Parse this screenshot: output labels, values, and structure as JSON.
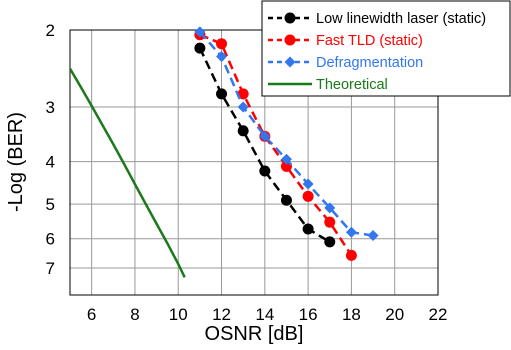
{
  "chart_data": {
    "type": "line",
    "xlabel": "OSNR [dB]",
    "ylabel": "-Log (BER)",
    "xlim": [
      5,
      22
    ],
    "x_ticks": [
      "6",
      "8",
      "10",
      "12",
      "14",
      "16",
      "18",
      "20",
      "22"
    ],
    "y_ticks": [
      "2",
      "3",
      "4",
      "5",
      "6",
      "7"
    ],
    "y_scale": "log10 of -Log(BER), inverted (2 at top, 7 at bottom)",
    "ylim": [
      2,
      7.6
    ],
    "grid": true,
    "legend_position": "top-right",
    "series": [
      {
        "name": "Low linewidth laser (static)",
        "color": "#000000",
        "marker": "circle",
        "line": "dashed",
        "x": [
          11,
          12,
          13,
          14,
          15,
          16,
          17
        ],
        "y": [
          2.2,
          2.8,
          3.4,
          4.2,
          4.9,
          5.7,
          6.1
        ]
      },
      {
        "name": "Fast TLD (static)",
        "color": "#ff0000",
        "marker": "circle",
        "line": "dashed",
        "x": [
          11,
          12,
          13,
          14,
          15,
          16,
          17,
          18
        ],
        "y": [
          2.05,
          2.15,
          2.8,
          3.5,
          4.1,
          4.8,
          5.5,
          6.55
        ]
      },
      {
        "name": "Defragmentation",
        "color": "#3377ee",
        "marker": "diamond",
        "line": "dashed",
        "x": [
          11,
          12,
          13,
          14,
          15,
          16,
          17,
          18,
          19
        ],
        "y": [
          2.02,
          2.3,
          3.0,
          3.5,
          3.95,
          4.5,
          5.1,
          5.8,
          5.9
        ]
      },
      {
        "name": "Theoretical",
        "color": "#1a7a1a",
        "marker": "none",
        "line": "solid",
        "x": [
          5,
          5.5,
          6,
          6.5,
          7,
          7.5,
          8,
          8.5,
          9,
          9.5,
          10,
          10.3
        ],
        "y": [
          2.45,
          2.7,
          2.98,
          3.3,
          3.65,
          4.05,
          4.5,
          5.0,
          5.55,
          6.15,
          6.85,
          7.35
        ]
      }
    ]
  }
}
